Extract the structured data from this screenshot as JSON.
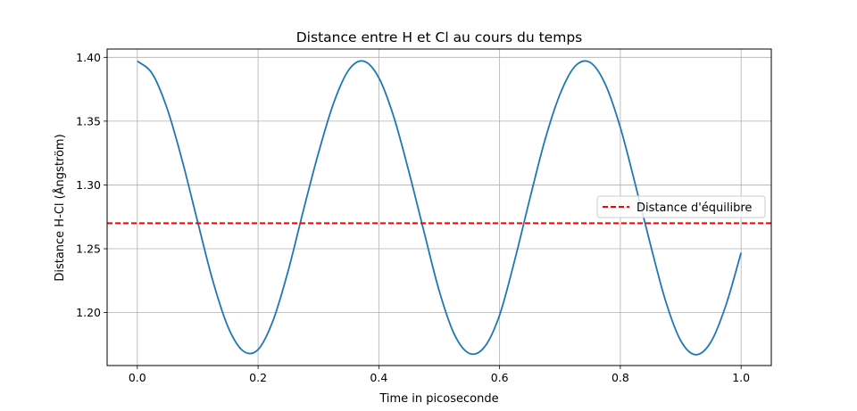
{
  "chart_data": {
    "type": "line",
    "title": "Distance entre H et Cl au cours du temps",
    "xlabel": "Time in picoseconde",
    "ylabel": "Distance H-Cl (Ångström)",
    "xlim": [
      -0.05,
      1.05
    ],
    "ylim": [
      1.1585,
      1.4065
    ],
    "xticks": [
      0.0,
      0.2,
      0.4,
      0.6,
      0.8,
      1.0
    ],
    "xtick_labels": [
      "0.0",
      "0.2",
      "0.4",
      "0.6",
      "0.8",
      "1.0"
    ],
    "yticks": [
      1.2,
      1.25,
      1.3,
      1.35,
      1.4
    ],
    "ytick_labels": [
      "1.20",
      "1.25",
      "1.30",
      "1.35",
      "1.40"
    ],
    "grid": true,
    "legend_position": "center-right",
    "series": [
      {
        "name": "",
        "style": "solid",
        "color": "#1f77b4",
        "x": [
          0.0,
          0.025,
          0.05,
          0.075,
          0.1,
          0.125,
          0.15,
          0.175,
          0.2,
          0.225,
          0.25,
          0.275,
          0.3,
          0.325,
          0.35,
          0.375,
          0.4,
          0.425,
          0.45,
          0.475,
          0.5,
          0.525,
          0.55,
          0.575,
          0.6,
          0.625,
          0.65,
          0.675,
          0.7,
          0.725,
          0.75,
          0.775,
          0.8,
          0.825,
          0.85,
          0.875,
          0.9,
          0.925,
          0.95,
          0.975,
          1.0
        ],
        "y": [
          1.397,
          1.387,
          1.359,
          1.318,
          1.271,
          1.225,
          1.189,
          1.17,
          1.171,
          1.194,
          1.233,
          1.28,
          1.325,
          1.364,
          1.39,
          1.397,
          1.384,
          1.353,
          1.31,
          1.263,
          1.217,
          1.183,
          1.168,
          1.173,
          1.198,
          1.241,
          1.289,
          1.335,
          1.371,
          1.393,
          1.396,
          1.379,
          1.345,
          1.3,
          1.253,
          1.209,
          1.178,
          1.167,
          1.177,
          1.206,
          1.247
        ]
      },
      {
        "name": "Distance d'équilibre",
        "style": "dashed",
        "color": "#ff0000",
        "type": "hline",
        "y": 1.27
      }
    ]
  }
}
